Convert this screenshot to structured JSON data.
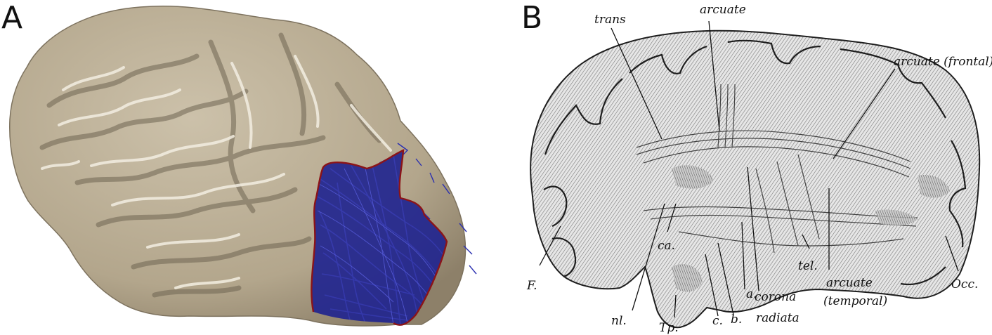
{
  "panel_a": {
    "letter": "A"
  },
  "panel_b": {
    "letter": "B",
    "labels": {
      "trans": "trans",
      "arcuate": "arcuate",
      "arcuate_frontal": "arcuate (frontal)",
      "f": "F.",
      "ca": "ca.",
      "tel": "tel.",
      "arcuate_temporal_1": "arcuate",
      "arcuate_temporal_2": "(temporal)",
      "occ": "Occ.",
      "a": "a.",
      "corona": "corona",
      "radiata": "radiata",
      "nl": "nl.",
      "tp": "Tp.",
      "c": "c.",
      "b": "b."
    }
  },
  "colors": {
    "brain_surface": "#b8ab92",
    "brain_highlight": "#f2ede2",
    "brain_shadow": "#6f6552",
    "tract_fibers": "#2a2fb0",
    "roi_outline": "#8b1418",
    "engraving_dark": "#2a2a2a",
    "engraving_light": "#d9d9d9"
  }
}
